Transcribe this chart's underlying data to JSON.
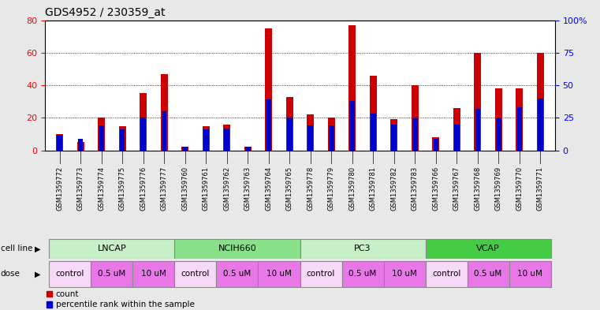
{
  "title": "GDS4952 / 230359_at",
  "samples": [
    "GSM1359772",
    "GSM1359773",
    "GSM1359774",
    "GSM1359775",
    "GSM1359776",
    "GSM1359777",
    "GSM1359760",
    "GSM1359761",
    "GSM1359762",
    "GSM1359763",
    "GSM1359764",
    "GSM1359765",
    "GSM1359778",
    "GSM1359779",
    "GSM1359780",
    "GSM1359781",
    "GSM1359782",
    "GSM1359783",
    "GSM1359766",
    "GSM1359767",
    "GSM1359768",
    "GSM1359769",
    "GSM1359770",
    "GSM1359771"
  ],
  "counts": [
    10,
    5,
    20,
    15,
    35,
    47,
    2,
    15,
    16,
    2,
    75,
    33,
    22,
    20,
    77,
    46,
    19,
    40,
    8,
    26,
    60,
    38,
    38,
    60
  ],
  "percentiles": [
    12,
    9,
    19,
    16,
    25,
    30,
    3,
    16,
    17,
    3,
    39,
    25,
    19,
    19,
    38,
    28,
    20,
    25,
    9,
    20,
    32,
    25,
    33,
    40
  ],
  "cell_lines": [
    {
      "name": "LNCAP",
      "start": 0,
      "end": 6,
      "color": "#c8f0c8"
    },
    {
      "name": "NCIH660",
      "start": 6,
      "end": 12,
      "color": "#88e088"
    },
    {
      "name": "PC3",
      "start": 12,
      "end": 18,
      "color": "#c8f0c8"
    },
    {
      "name": "VCAP",
      "start": 18,
      "end": 24,
      "color": "#44cc44"
    }
  ],
  "dose_groups": [
    {
      "name": "control",
      "start": 0,
      "end": 2,
      "color": "#f8d8f8"
    },
    {
      "name": "0.5 uM",
      "start": 2,
      "end": 4,
      "color": "#e878e8"
    },
    {
      "name": "10 uM",
      "start": 4,
      "end": 6,
      "color": "#e878e8"
    },
    {
      "name": "control",
      "start": 6,
      "end": 8,
      "color": "#f8d8f8"
    },
    {
      "name": "0.5 uM",
      "start": 8,
      "end": 10,
      "color": "#e878e8"
    },
    {
      "name": "10 uM",
      "start": 10,
      "end": 12,
      "color": "#e878e8"
    },
    {
      "name": "control",
      "start": 12,
      "end": 14,
      "color": "#f8d8f8"
    },
    {
      "name": "0.5 uM",
      "start": 14,
      "end": 16,
      "color": "#e878e8"
    },
    {
      "name": "10 uM",
      "start": 16,
      "end": 18,
      "color": "#e878e8"
    },
    {
      "name": "control",
      "start": 18,
      "end": 20,
      "color": "#f8d8f8"
    },
    {
      "name": "0.5 uM",
      "start": 20,
      "end": 22,
      "color": "#e878e8"
    },
    {
      "name": "10 uM",
      "start": 22,
      "end": 24,
      "color": "#e878e8"
    }
  ],
  "bar_color": "#cc0000",
  "percentile_color": "#0000cc",
  "ylim_left": [
    0,
    80
  ],
  "ylim_right": [
    0,
    100
  ],
  "yticks_left": [
    0,
    20,
    40,
    60,
    80
  ],
  "yticks_right": [
    0,
    25,
    50,
    75,
    100
  ],
  "ytick_labels_right": [
    "0",
    "25",
    "50",
    "75",
    "100%"
  ],
  "grid_values": [
    20,
    40,
    60
  ],
  "background_color": "#e8e8e8",
  "plot_bg": "#ffffff",
  "xtick_bg": "#d0d0d0"
}
